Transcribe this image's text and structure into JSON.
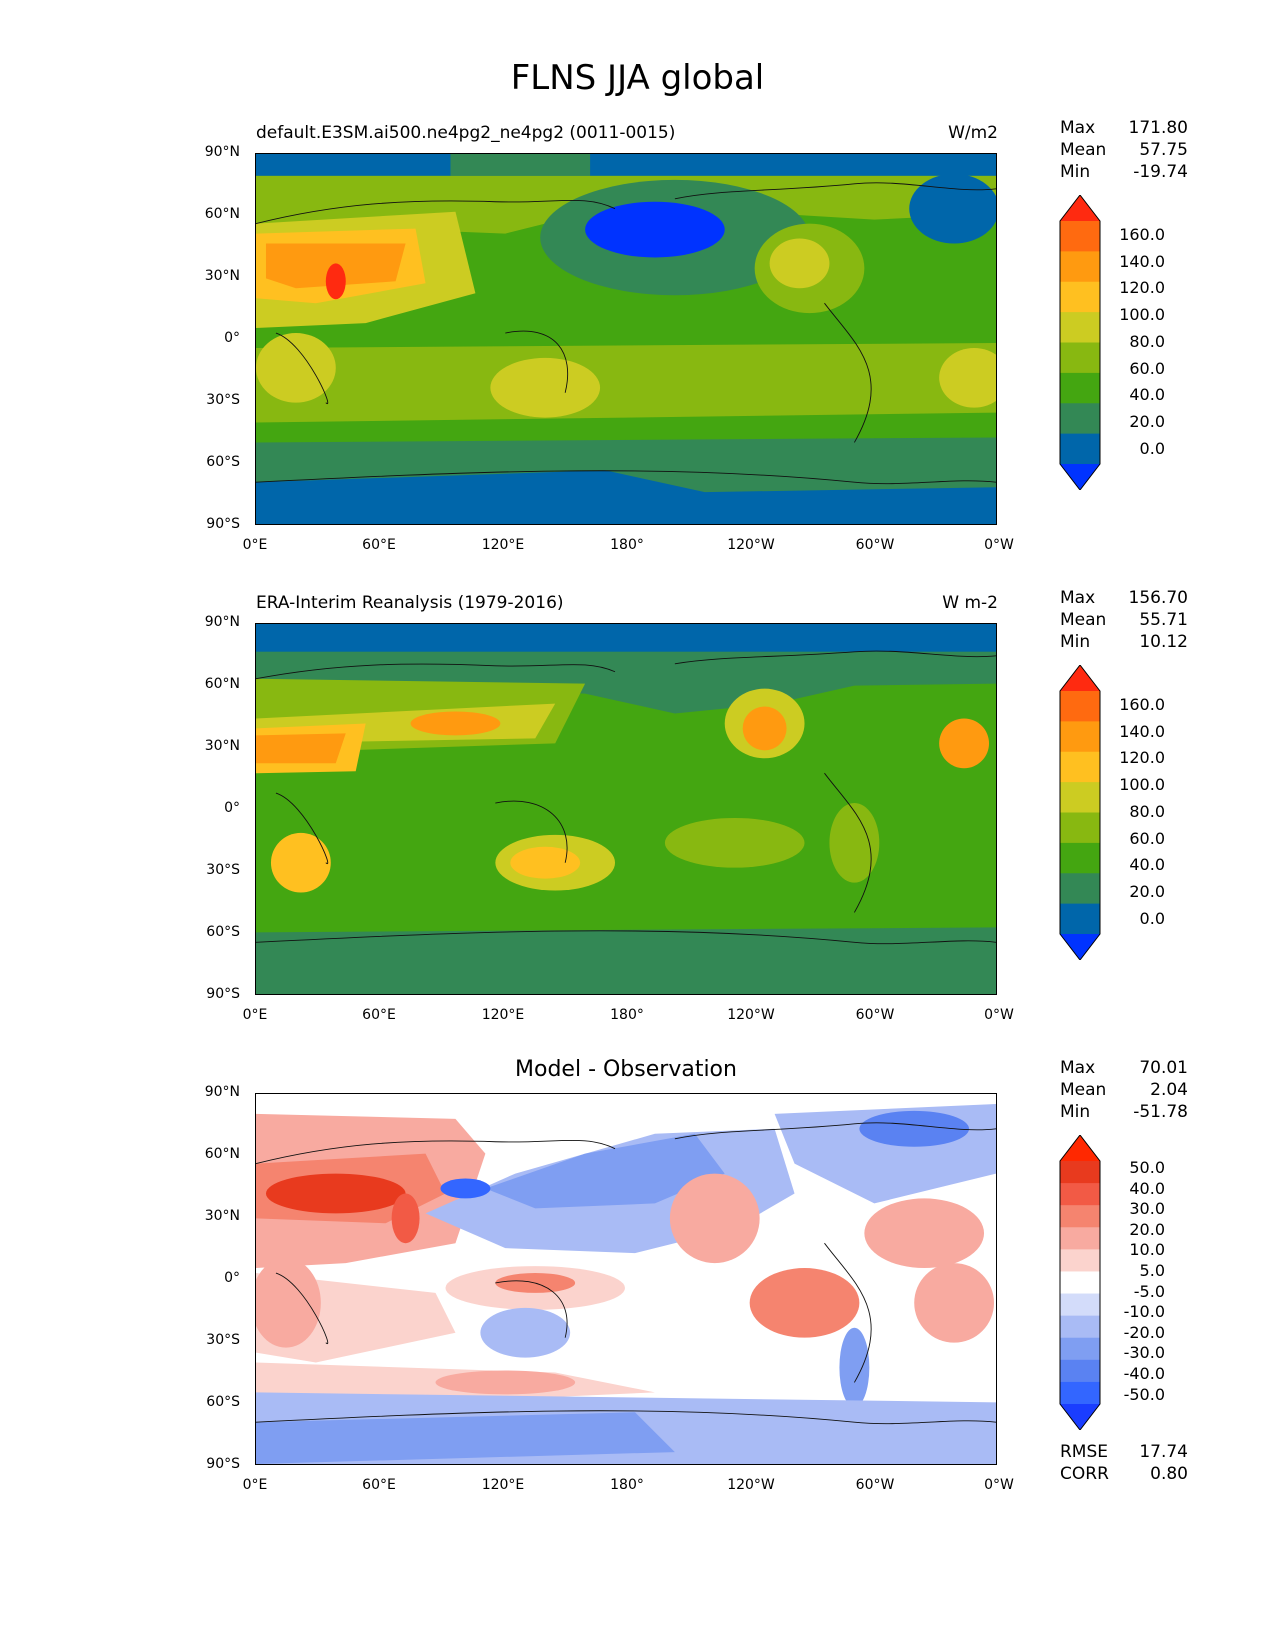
{
  "figure": {
    "title": "FLNS JJA global"
  },
  "axes": {
    "lat_ticks": [
      "90°N",
      "60°N",
      "30°N",
      "0°",
      "30°S",
      "60°S",
      "90°S"
    ],
    "lon_ticks": [
      "0°E",
      "60°E",
      "120°E",
      "180°",
      "120°W",
      "60°W",
      "0°W"
    ]
  },
  "colors": {
    "main_levels": [
      "#0033ff",
      "#0066aa",
      "#338855",
      "#44a611",
      "#88b811",
      "#cccc22",
      "#ffc020",
      "#ff9a10",
      "#ff6a10",
      "#ff2a10"
    ],
    "diff_levels": [
      "#1a3dff",
      "#3366ff",
      "#5a82f2",
      "#7f9ef2",
      "#a9bbf5",
      "#d3dcfa",
      "#ffffff",
      "#fbd3cd",
      "#f8aaa0",
      "#f5846f",
      "#f25a45",
      "#e83a1e",
      "#ff2800"
    ]
  },
  "panels": [
    {
      "id": "model",
      "title_left": "default.E3SM.ai500.ne4pg2_ne4pg2 (0011-0015)",
      "title_right": "W/m2",
      "stats": {
        "max_label": "Max",
        "max": "171.80",
        "mean_label": "Mean",
        "mean": "57.75",
        "min_label": "Min",
        "min": "-19.74"
      },
      "colorbar_labels": [
        "160.0",
        "140.0",
        "120.0",
        "100.0",
        "80.0",
        "60.0",
        "40.0",
        "20.0",
        "0.0"
      ]
    },
    {
      "id": "obs",
      "title_left": "ERA-Interim Reanalysis (1979-2016)",
      "title_right": "W m-2",
      "stats": {
        "max_label": "Max",
        "max": "156.70",
        "mean_label": "Mean",
        "mean": "55.71",
        "min_label": "Min",
        "min": "10.12"
      },
      "colorbar_labels": [
        "160.0",
        "140.0",
        "120.0",
        "100.0",
        "80.0",
        "60.0",
        "40.0",
        "20.0",
        "0.0"
      ]
    },
    {
      "id": "diff",
      "title_center": "Model - Observation",
      "stats": {
        "max_label": "Max",
        "max": "70.01",
        "mean_label": "Mean",
        "mean": "2.04",
        "min_label": "Min",
        "min": "-51.78"
      },
      "colorbar_labels": [
        "50.0",
        "40.0",
        "30.0",
        "20.0",
        "10.0",
        "5.0",
        "-5.0",
        "-10.0",
        "-20.0",
        "-30.0",
        "-40.0",
        "-50.0"
      ],
      "metrics": {
        "rmse_label": "RMSE",
        "rmse": "17.74",
        "corr_label": "CORR",
        "corr": "0.80"
      }
    }
  ],
  "chart_data": [
    {
      "type": "heatmap",
      "title": "default.E3SM.ai500.ne4pg2_ne4pg2 (0011-0015)",
      "units": "W/m2",
      "x_range_degrees": [
        0,
        360
      ],
      "y_range_degrees": [
        -90,
        90
      ],
      "levels": [
        0,
        20,
        40,
        60,
        80,
        100,
        120,
        140,
        160
      ],
      "max": 171.8,
      "mean": 57.75,
      "min": -19.74
    },
    {
      "type": "heatmap",
      "title": "ERA-Interim Reanalysis (1979-2016)",
      "units": "W m-2",
      "x_range_degrees": [
        0,
        360
      ],
      "y_range_degrees": [
        -90,
        90
      ],
      "levels": [
        0,
        20,
        40,
        60,
        80,
        100,
        120,
        140,
        160
      ],
      "max": 156.7,
      "mean": 55.71,
      "min": 10.12
    },
    {
      "type": "heatmap",
      "title": "Model - Observation",
      "x_range_degrees": [
        0,
        360
      ],
      "y_range_degrees": [
        -90,
        90
      ],
      "levels": [
        -50,
        -40,
        -30,
        -20,
        -10,
        -5,
        5,
        10,
        20,
        30,
        40,
        50
      ],
      "max": 70.01,
      "mean": 2.04,
      "min": -51.78,
      "rmse": 17.74,
      "corr": 0.8
    }
  ]
}
